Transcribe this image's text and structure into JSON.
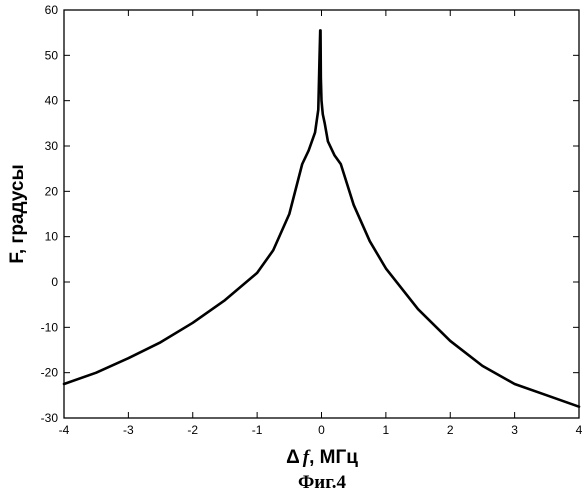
{
  "chart_data": {
    "type": "line",
    "xlabel": "Δ f, МГц",
    "xlabel_parts": {
      "delta": "Δ",
      "f": "f",
      "rest": ", МГц"
    },
    "ylabel": "F, градусы",
    "caption": "Фиг.4",
    "xlim": [
      -4,
      4
    ],
    "ylim": [
      -30,
      60
    ],
    "xticks": [
      -4,
      -3,
      -2,
      -1,
      0,
      1,
      2,
      3,
      4
    ],
    "yticks": [
      -30,
      -20,
      -10,
      0,
      10,
      20,
      30,
      40,
      50,
      60
    ],
    "xtick_labels": [
      "-4",
      "-3",
      "-2",
      "-1",
      "0",
      "1",
      "2",
      "3",
      "4"
    ],
    "ytick_labels": [
      "-30",
      "-20",
      "-10",
      "0",
      "10",
      "20",
      "30",
      "40",
      "50",
      "60"
    ],
    "grid": false,
    "line_color": "#000000",
    "series": [
      {
        "x": [
          -4,
          -3.5,
          -3,
          -2.5,
          -2,
          -1.5,
          -1,
          -0.75,
          -0.5,
          -0.3,
          -0.2,
          -0.1,
          -0.05,
          -0.04,
          -0.03,
          -0.02,
          -0.015,
          -0.01,
          0.0,
          0.01,
          0.02,
          0.05,
          0.1,
          0.2,
          0.3,
          0.5,
          0.75,
          1,
          1.5,
          2,
          2.5,
          3,
          3.5,
          4
        ],
        "y": [
          -22.5,
          -20,
          -16.8,
          -13.3,
          -9,
          -4,
          2,
          7,
          15,
          26,
          29,
          33,
          38,
          44,
          50,
          55.5,
          55.5,
          45,
          40,
          38.5,
          37,
          35,
          31,
          28,
          26,
          17,
          9,
          3,
          -6,
          -13,
          -18.5,
          -22.5,
          -25,
          -27.5
        ]
      }
    ]
  }
}
